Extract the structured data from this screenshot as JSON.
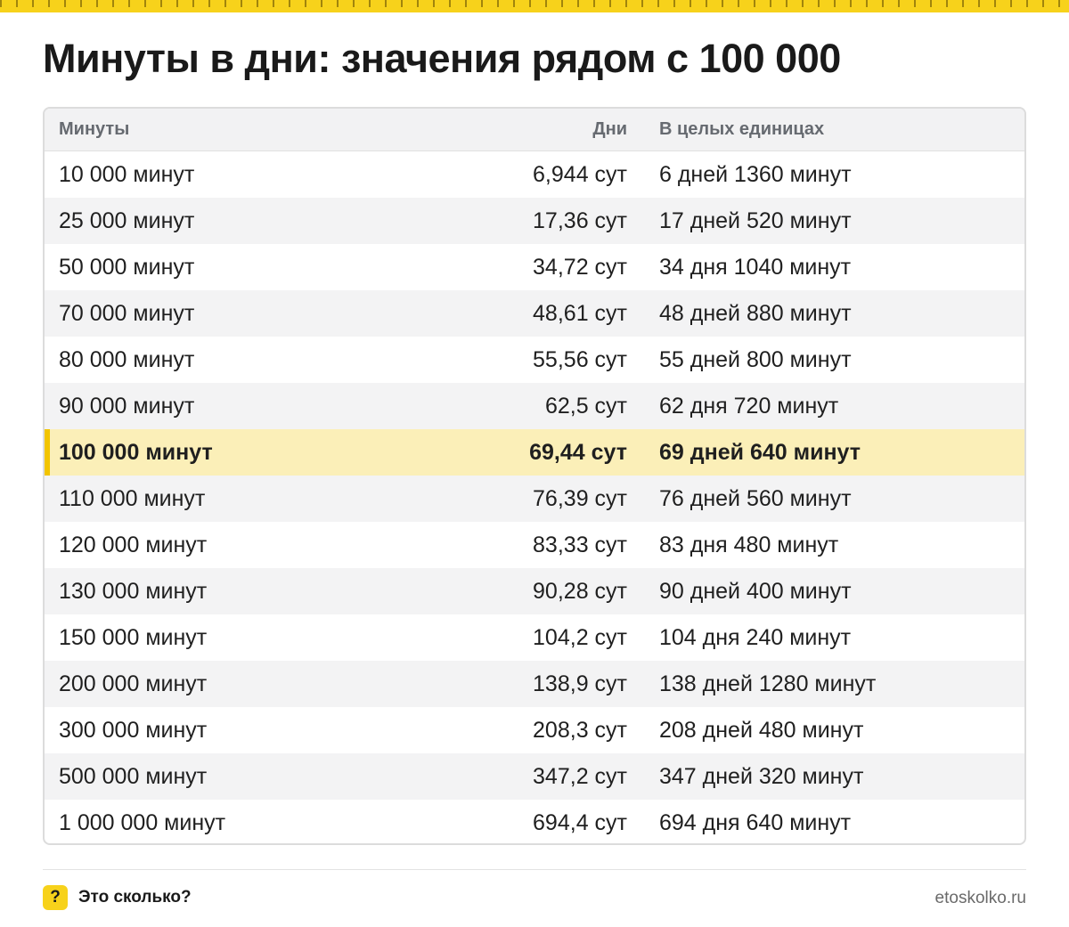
{
  "title": "Минуты в дни: значения рядом с 100 000",
  "colors": {
    "accent": "#f7d21b",
    "highlight_row": "#fbefb8",
    "highlight_bar": "#f2c400"
  },
  "table": {
    "headers": {
      "minutes": "Минуты",
      "days": "Дни",
      "units": "В целых единицах"
    },
    "rows": [
      {
        "minutes": "10 000 минут",
        "days": "6,944 сут",
        "units": "6 дней 1360 минут"
      },
      {
        "minutes": "25 000 минут",
        "days": "17,36 сут",
        "units": "17 дней 520 минут"
      },
      {
        "minutes": "50 000 минут",
        "days": "34,72 сут",
        "units": "34 дня 1040 минут"
      },
      {
        "minutes": "70 000 минут",
        "days": "48,61 сут",
        "units": "48 дней 880 минут"
      },
      {
        "minutes": "80 000 минут",
        "days": "55,56 сут",
        "units": "55 дней 800 минут"
      },
      {
        "minutes": "90 000 минут",
        "days": "62,5 сут",
        "units": "62 дня 720 минут"
      },
      {
        "minutes": "100 000 минут",
        "days": "69,44 сут",
        "units": "69 дней 640 минут",
        "highlight": true
      },
      {
        "minutes": "110 000 минут",
        "days": "76,39 сут",
        "units": "76 дней 560 минут"
      },
      {
        "minutes": "120 000 минут",
        "days": "83,33 сут",
        "units": "83 дня 480 минут"
      },
      {
        "minutes": "130 000 минут",
        "days": "90,28 сут",
        "units": "90 дней 400 минут"
      },
      {
        "minutes": "150 000 минут",
        "days": "104,2 сут",
        "units": "104 дня 240 минут"
      },
      {
        "minutes": "200 000 минут",
        "days": "138,9 сут",
        "units": "138 дней 1280 минут"
      },
      {
        "minutes": "300 000 минут",
        "days": "208,3 сут",
        "units": "208 дней 480 минут"
      },
      {
        "minutes": "500 000 минут",
        "days": "347,2 сут",
        "units": "347 дней 320 минут"
      },
      {
        "minutes": "1 000 000 минут",
        "days": "694,4 сут",
        "units": "694 дня 640 минут"
      }
    ]
  },
  "footer": {
    "icon": "question-icon",
    "icon_glyph": "?",
    "brand": "Это сколько?",
    "site": "etoskolko.ru"
  }
}
